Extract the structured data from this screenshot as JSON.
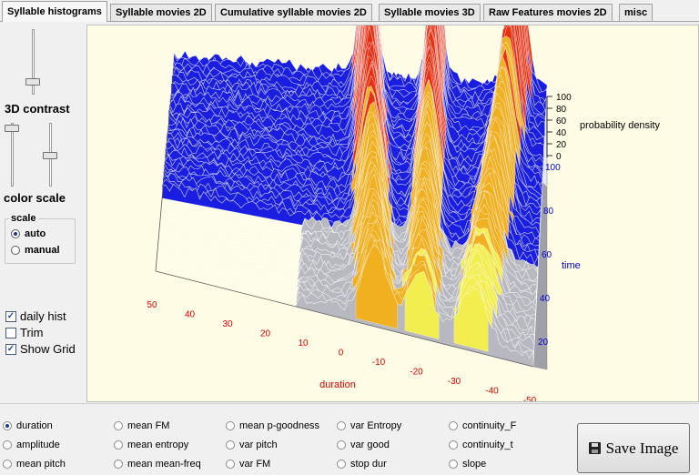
{
  "tabs": [
    {
      "label": "Syllable histograms",
      "active": true
    },
    {
      "label": "Syllable movies 2D",
      "active": false
    },
    {
      "label": "Cumulative syllable movies 2D",
      "active": false
    },
    {
      "label": "Syllable movies 3D",
      "active": false
    },
    {
      "label": "Raw Features movies 2D",
      "active": false
    },
    {
      "label": "misc",
      "active": false
    }
  ],
  "controls": {
    "contrast_label": "3D contrast",
    "color_scale_label": "color scale",
    "scale": {
      "title": "scale",
      "options": [
        "auto",
        "manual"
      ],
      "selected": "auto"
    },
    "checkboxes": [
      {
        "label": "daily hist",
        "checked": true
      },
      {
        "label": "Trim",
        "checked": false
      },
      {
        "label": "Show Grid",
        "checked": true
      }
    ]
  },
  "plot": {
    "z_axis": {
      "label": "probability density",
      "ticks": [
        "100",
        "80",
        "60",
        "40",
        "20",
        "0"
      ]
    },
    "time_axis": {
      "label": "time",
      "ticks": [
        "100",
        "80",
        "60",
        "40",
        "20"
      ]
    },
    "duration_axis": {
      "label": "duration",
      "ticks": [
        "50",
        "40",
        "30",
        "20",
        "10",
        "0",
        "-10",
        "-20",
        "-30",
        "-40",
        "-50"
      ]
    },
    "colors": {
      "surface": "#1a1ee0",
      "peak": "#e83010",
      "mid": "#f0b020",
      "low": "#f2ee50",
      "baseline": "#b8b8c0",
      "background": "#fffce6",
      "back_wall": "#e8e8f4"
    }
  },
  "features": {
    "selected": "duration",
    "columns": [
      [
        "duration",
        "amplitude",
        "mean pitch"
      ],
      [
        "mean FM",
        "mean entropy",
        "mean mean-freq"
      ],
      [
        "mean p-goodness",
        "var pitch",
        "var FM"
      ],
      [
        "var Entropy",
        "var good",
        "stop dur"
      ],
      [
        "continuity_F",
        "continuity_t",
        "slope"
      ]
    ]
  },
  "save_button": "Save Image"
}
